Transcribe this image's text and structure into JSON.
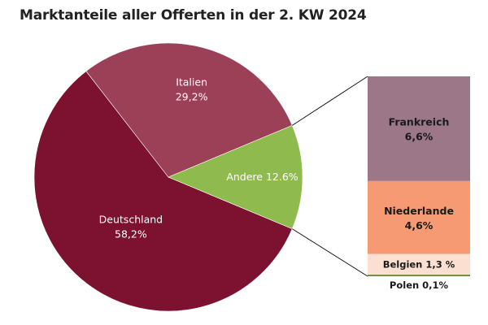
{
  "chart_data": {
    "type": "pie",
    "title": "Marktanteile aller Offerten in der 2. KW 2024",
    "slices": [
      {
        "name": "Deutschland",
        "value": 58.2,
        "label": "Deutschland",
        "value_label": "58,2%",
        "color": "#7d1230"
      },
      {
        "name": "Italien",
        "value": 29.2,
        "label": "Italien",
        "value_label": "29,2%",
        "color": "#9c4058"
      },
      {
        "name": "Andere",
        "value": 12.6,
        "label": "Andere 12.6%",
        "color": "#8fbb4e"
      }
    ],
    "breakdown": {
      "of": "Andere",
      "type": "stacked-bar",
      "segments": [
        {
          "name": "Frankreich",
          "value": 6.6,
          "label": "Frankreich",
          "value_label": "6,6%",
          "color": "#9b7788"
        },
        {
          "name": "Niederlande",
          "value": 4.6,
          "label": "Niederlande",
          "value_label": "4,6%",
          "color": "#f59a72"
        },
        {
          "name": "Belgien",
          "value": 1.3,
          "label": "Belgien 1,3 %",
          "color": "#fbe0d2"
        },
        {
          "name": "Polen",
          "value": 0.1,
          "label": "Polen 0,1%",
          "color": "#6e8f3c"
        }
      ]
    }
  }
}
